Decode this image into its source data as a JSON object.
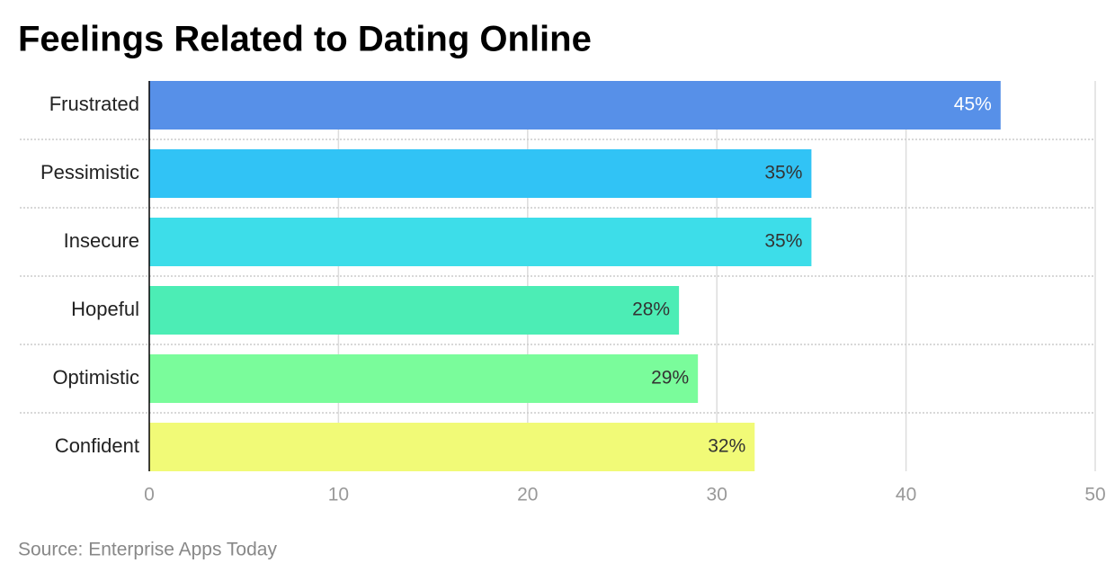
{
  "chart_data": {
    "type": "bar",
    "orientation": "horizontal",
    "title": "Feelings Related to Dating Online",
    "categories": [
      "Frustrated",
      "Pessimistic",
      "Insecure",
      "Hopeful",
      "Optimistic",
      "Confident"
    ],
    "values": [
      45,
      35,
      35,
      28,
      29,
      32
    ],
    "value_labels": [
      "45%",
      "35%",
      "35%",
      "28%",
      "29%",
      "32%"
    ],
    "colors": [
      "#5790e8",
      "#31c3f5",
      "#3ddde9",
      "#4cedb5",
      "#7afc9b",
      "#f1fa77"
    ],
    "xlim": [
      0,
      50
    ],
    "xticks": [
      0,
      10,
      20,
      30,
      40,
      50
    ],
    "grid": true,
    "source": "Source: Enterprise Apps Today"
  }
}
